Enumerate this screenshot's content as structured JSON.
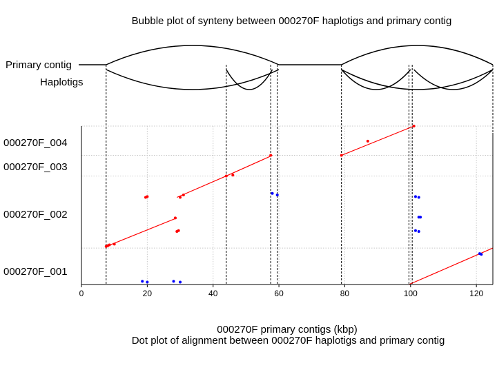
{
  "captions": {
    "top": "Bubble plot of synteny between 000270F haplotigs and primary contig",
    "bottom": "Dot plot of alignment between 000270F haplotigs and primary contig"
  },
  "bubble": {
    "primary_label": "Primary contig",
    "haplotigs_label": "Haplotigs",
    "primary_extent_kbp": [
      7.5,
      125
    ],
    "big_bubbles_kbp": [
      [
        7.5,
        60
      ],
      [
        79,
        125
      ]
    ],
    "small_bubbles_kbp": [
      [
        44,
        58
      ],
      [
        79,
        100
      ],
      [
        101,
        125
      ]
    ],
    "connectors_kbp": [
      7.5,
      44,
      57.5,
      59.5,
      79,
      99.5,
      100.5,
      125
    ]
  },
  "chart_data": {
    "type": "scatter",
    "xlabel": "000270F primary contigs (kbp)",
    "xlim": [
      0,
      125
    ],
    "xticks": [
      0,
      20,
      40,
      60,
      80,
      100,
      120
    ],
    "y_categories": [
      "000270F_001",
      "000270F_002",
      "000270F_003",
      "000270F_004"
    ],
    "y_label_positions": [
      0.08,
      0.44,
      0.74,
      0.89
    ],
    "gridlines_y": [
      0.23,
      0.685,
      0.815
    ],
    "colors": {
      "forward": "#ff0000",
      "reverse": "#0000ff"
    },
    "lines": [
      {
        "x": [
          7.5,
          29
        ],
        "y": [
          0.24,
          0.42
        ]
      },
      {
        "x": [
          29,
          44
        ],
        "y": [
          0.55,
          0.685
        ]
      },
      {
        "x": [
          44,
          58
        ],
        "y": [
          0.685,
          0.815
        ]
      },
      {
        "x": [
          79,
          101
        ],
        "y": [
          0.815,
          1.0
        ]
      },
      {
        "x": [
          99.5,
          125
        ],
        "y": [
          0.0,
          0.23
        ]
      }
    ],
    "forward_points": {
      "x": [
        7.5,
        8,
        8.5,
        10,
        19.5,
        20,
        28.5,
        29,
        29.5,
        30,
        31,
        44,
        46,
        57.5,
        79,
        87,
        101
      ],
      "y": [
        0.24,
        0.245,
        0.25,
        0.255,
        0.55,
        0.555,
        0.42,
        0.335,
        0.34,
        0.55,
        0.565,
        0.685,
        0.69,
        0.815,
        0.815,
        0.905,
        1.0
      ]
    },
    "reverse_points": {
      "x": [
        18.5,
        20,
        28,
        30,
        58,
        59.5,
        101.5,
        102.5,
        102.5,
        103,
        101.5,
        102.5,
        121,
        121.5
      ],
      "y": [
        0.02,
        0.015,
        0.02,
        0.015,
        0.575,
        0.565,
        0.555,
        0.55,
        0.425,
        0.425,
        0.34,
        0.335,
        0.195,
        0.19
      ]
    }
  }
}
